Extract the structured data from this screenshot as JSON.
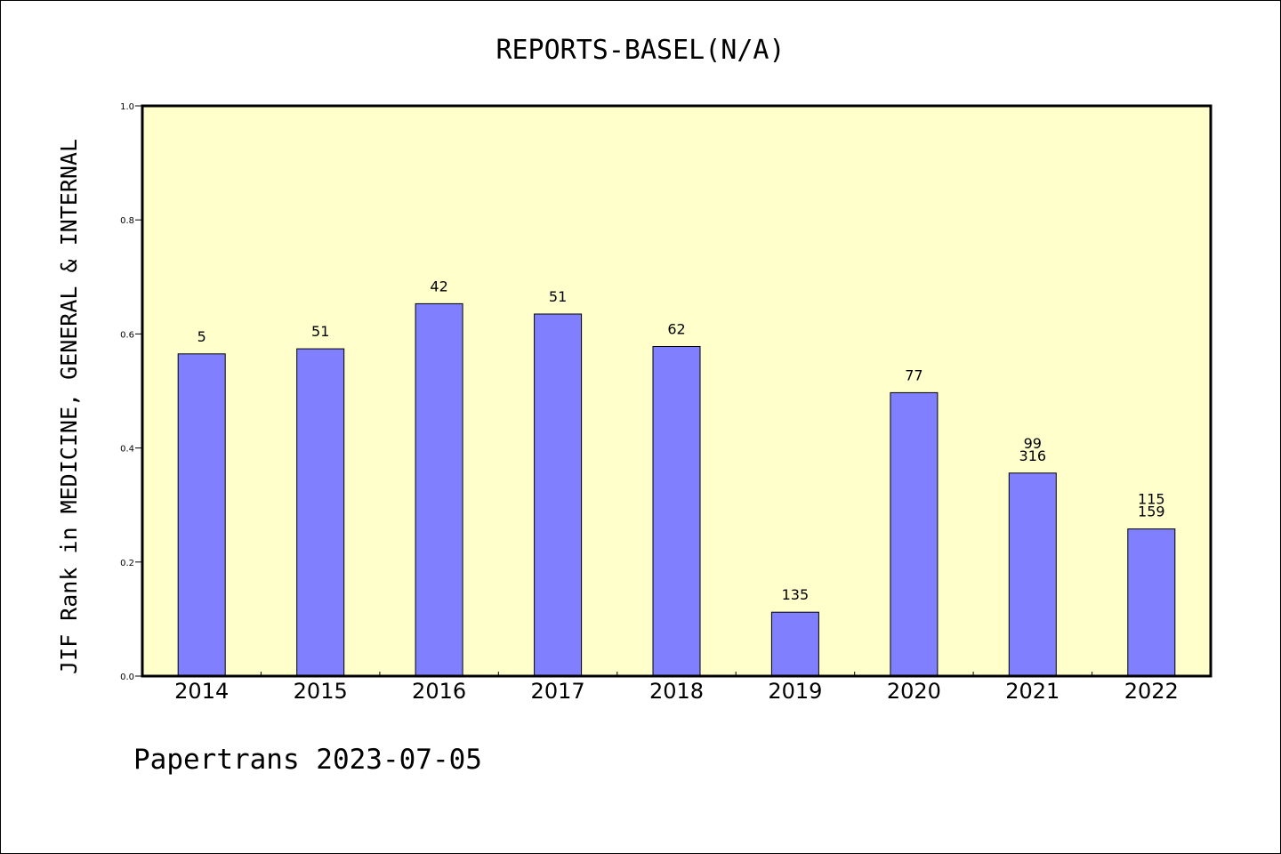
{
  "chart_data": {
    "type": "bar",
    "title": "REPORTS-BASEL(N/A)",
    "xlabel": "",
    "ylabel": "JIF Rank in MEDICINE, GENERAL & INTERNAL",
    "ylim": [
      0,
      1.0
    ],
    "yticks": [
      "0.0",
      "0.2",
      "0.4",
      "0.6",
      "0.8",
      "1.0"
    ],
    "categories": [
      "2014",
      "2015",
      "2016",
      "2017",
      "2018",
      "2019",
      "2020",
      "2021",
      "2022"
    ],
    "values": [
      0.565,
      0.574,
      0.653,
      0.635,
      0.578,
      0.112,
      0.497,
      0.356,
      0.258
    ],
    "labels": [
      [
        "5"
      ],
      [
        "51"
      ],
      [
        "42"
      ],
      [
        "51"
      ],
      [
        "62"
      ],
      [
        "135"
      ],
      [
        "77"
      ],
      [
        "99",
        "316"
      ],
      [
        "115",
        "159"
      ]
    ],
    "grid": false,
    "legend": "none",
    "colors": {
      "plot_background": "#ffffcc",
      "bar_fill": "#8080ff",
      "bar_stroke": "#000000"
    }
  },
  "footer": "Papertrans 2023-07-05"
}
